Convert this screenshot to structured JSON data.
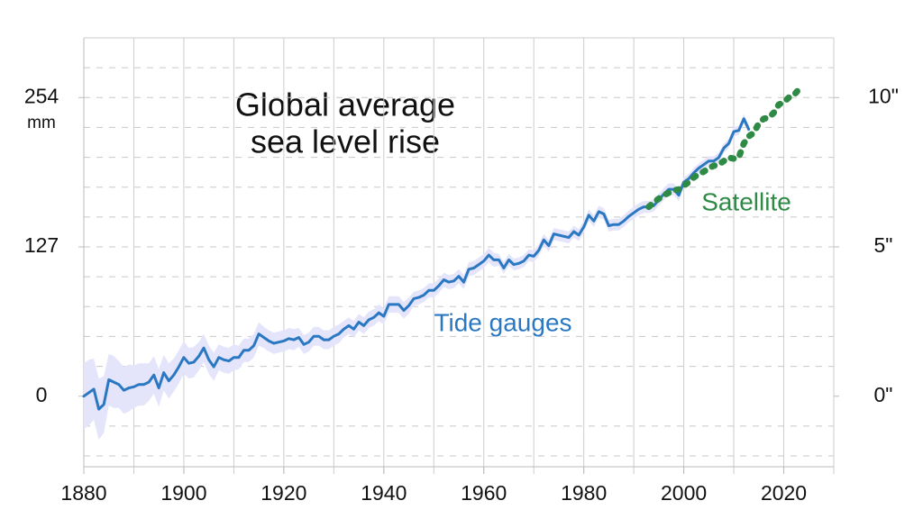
{
  "chart_data": {
    "type": "line",
    "title": [
      "Global average",
      "sea level rise"
    ],
    "y_unit": "mm",
    "xlim": [
      1880,
      2030
    ],
    "xticks": [
      1880,
      1900,
      1920,
      1940,
      1960,
      1980,
      2000,
      2020
    ],
    "xgrid": [
      1890,
      1900,
      1910,
      1920,
      1930,
      1940,
      1950,
      1960,
      1970,
      1980,
      1990,
      2000,
      2010,
      2020,
      2030
    ],
    "ylim": [
      -60,
      304.8
    ],
    "yticks": [
      0,
      127,
      254
    ],
    "y2lim": [
      -2.362,
      12
    ],
    "y2ticks": [
      {
        "value": 0,
        "label": "0\""
      },
      {
        "value": 5,
        "label": "5\""
      },
      {
        "value": 10,
        "label": "10\""
      }
    ],
    "y2grid": [
      -2,
      -1,
      1,
      2,
      3,
      4,
      5,
      6,
      7,
      8,
      9,
      10,
      11,
      12
    ],
    "band_color": "#e4e4fb",
    "series": [
      {
        "name": "Tide gauges",
        "color": "#2b78c2",
        "x": [
          1880,
          1881,
          1882,
          1883,
          1884,
          1885,
          1886,
          1887,
          1888,
          1889,
          1890,
          1891,
          1892,
          1893,
          1894,
          1895,
          1896,
          1897,
          1898,
          1899,
          1900,
          1901,
          1902,
          1903,
          1904,
          1905,
          1906,
          1907,
          1908,
          1909,
          1910,
          1911,
          1912,
          1913,
          1914,
          1915,
          1916,
          1917,
          1918,
          1919,
          1920,
          1921,
          1922,
          1923,
          1924,
          1925,
          1926,
          1927,
          1928,
          1929,
          1930,
          1931,
          1932,
          1933,
          1934,
          1935,
          1936,
          1937,
          1938,
          1939,
          1940,
          1941,
          1942,
          1943,
          1944,
          1945,
          1946,
          1947,
          1948,
          1949,
          1950,
          1951,
          1952,
          1953,
          1954,
          1955,
          1956,
          1957,
          1958,
          1959,
          1960,
          1961,
          1962,
          1963,
          1964,
          1965,
          1966,
          1967,
          1968,
          1969,
          1970,
          1971,
          1972,
          1973,
          1974,
          1975,
          1976,
          1977,
          1978,
          1979,
          1980,
          1981,
          1982,
          1983,
          1984,
          1985,
          1986,
          1987,
          1988,
          1989,
          1990,
          1991,
          1992,
          1993,
          1994,
          1995,
          1996,
          1997,
          1998,
          1999,
          2000,
          2001,
          2002,
          2003,
          2004,
          2005,
          2006,
          2007,
          2008,
          2009,
          2010,
          2011,
          2012,
          2013
        ],
        "values": [
          0,
          3,
          6,
          -11,
          -7,
          14,
          12,
          10,
          5,
          7,
          8,
          10,
          10,
          12,
          18,
          7,
          20,
          13,
          18,
          25,
          33,
          28,
          29,
          34,
          41,
          31,
          25,
          33,
          31,
          30,
          33,
          33,
          39,
          39,
          43,
          53,
          50,
          47,
          45,
          46,
          47,
          49,
          48,
          50,
          44,
          46,
          51,
          51,
          48,
          48,
          51,
          53,
          57,
          60,
          57,
          63,
          60,
          65,
          67,
          71,
          68,
          78,
          78,
          78,
          73,
          77,
          83,
          84,
          86,
          90,
          90,
          94,
          99,
          97,
          98,
          102,
          97,
          108,
          109,
          112,
          115,
          120,
          116,
          116,
          109,
          116,
          112,
          113,
          115,
          120,
          119,
          124,
          133,
          128,
          138,
          137,
          136,
          135,
          140,
          137,
          144,
          154,
          149,
          157,
          155,
          145,
          146,
          146,
          149,
          153,
          156,
          159,
          161,
          161,
          162,
          167,
          172,
          176,
          176,
          171,
          182,
          185,
          190,
          194,
          197,
          200,
          200,
          203,
          211,
          215,
          225,
          226,
          236,
          227
        ],
        "error": [
          28,
          28,
          26,
          26,
          24,
          22,
          22,
          20,
          20,
          20,
          18,
          18,
          18,
          16,
          16,
          16,
          15,
          15,
          14,
          14,
          14,
          13,
          13,
          12,
          12,
          12,
          12,
          11,
          11,
          11,
          11,
          10,
          10,
          10,
          10,
          10,
          9,
          9,
          9,
          9,
          9,
          9,
          9,
          8,
          8,
          8,
          8,
          8,
          8,
          8,
          8,
          8,
          7,
          7,
          7,
          7,
          7,
          7,
          7,
          7,
          7,
          7,
          7,
          7,
          7,
          7,
          6,
          6,
          6,
          6,
          6,
          6,
          6,
          6,
          6,
          6,
          6,
          6,
          6,
          6,
          6,
          6,
          6,
          5,
          5,
          5,
          5,
          5,
          5,
          5,
          5,
          5,
          5,
          5,
          5,
          5,
          5,
          5,
          5,
          5,
          5,
          5,
          5,
          5,
          5,
          5,
          5,
          5,
          5,
          5,
          5,
          5,
          5,
          5,
          5,
          5,
          5,
          5,
          5,
          5,
          4,
          4,
          4,
          4,
          4,
          4,
          4,
          4,
          4,
          4,
          4,
          4,
          4,
          4
        ]
      },
      {
        "name": "Satellite",
        "color": "#2e8a45",
        "style": "dotted",
        "x": [
          1993,
          1994,
          1995,
          1996,
          1997,
          1998,
          1999,
          2000,
          2001,
          2002,
          2003,
          2004,
          2005,
          2006,
          2007,
          2008,
          2009,
          2010,
          2011,
          2012,
          2013,
          2014,
          2015,
          2016,
          2017,
          2018,
          2019,
          2020,
          2021,
          2022,
          2023
        ],
        "values": [
          161,
          165,
          168,
          171,
          173,
          175,
          176,
          179,
          182,
          186,
          189,
          191,
          194,
          196,
          197,
          200,
          203,
          202,
          203,
          215,
          221,
          224,
          232,
          236,
          237,
          241,
          248,
          250,
          254,
          256,
          261
        ]
      }
    ]
  }
}
